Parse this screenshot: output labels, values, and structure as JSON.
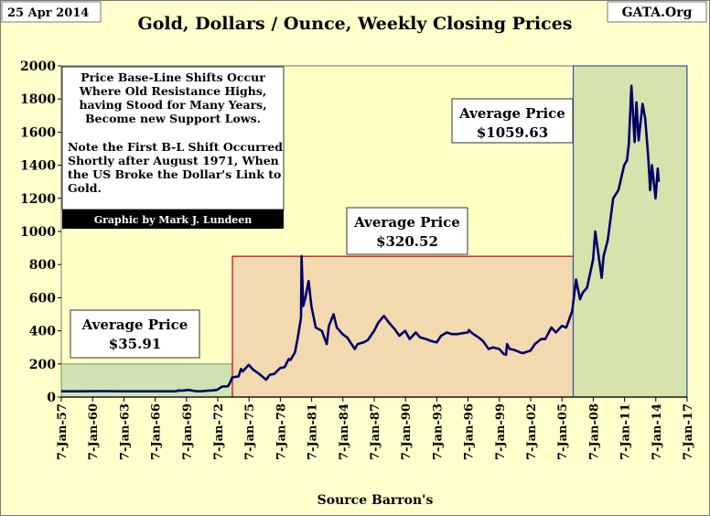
{
  "header": {
    "date": "25 Apr 2014",
    "source_org": "GATA.Org"
  },
  "chart_data": {
    "type": "line",
    "title": "Gold, Dollars / Ounce, Weekly Closing Prices",
    "xlabel": "Source Barron's",
    "ylabel": "",
    "ylim": [
      0,
      2000
    ],
    "yticks": [
      0,
      200,
      400,
      600,
      800,
      1000,
      1200,
      1400,
      1600,
      1800,
      2000
    ],
    "xlim": [
      "1957-01-07",
      "2017-01-07"
    ],
    "xticks": [
      "7-Jan-57",
      "7-Jan-60",
      "7-Jan-63",
      "7-Jan-66",
      "7-Jan-69",
      "7-Jan-72",
      "7-Jan-75",
      "7-Jan-78",
      "7-Jan-81",
      "7-Jan-84",
      "7-Jan-87",
      "7-Jan-90",
      "7-Jan-93",
      "7-Jan-96",
      "7-Jan-99",
      "7-Jan-02",
      "7-Jan-05",
      "7-Jan-08",
      "7-Jan-11",
      "7-Jan-14",
      "7-Jan-17"
    ],
    "grid": false,
    "series": [
      {
        "color": "#000066",
        "x": [
          "1957-01-07",
          "1959-01-05",
          "1961-01-02",
          "1963-01-07",
          "1965-01-04",
          "1967-01-02",
          "1968-01-01",
          "1968-04-01",
          "1968-09-02",
          "1969-03-03",
          "1969-06-02",
          "1970-01-05",
          "1970-06-01",
          "1971-01-04",
          "1971-06-07",
          "1971-12-06",
          "1972-06-05",
          "1973-01-01",
          "1973-03-05",
          "1973-06-04",
          "1973-07-02",
          "1974-01-07",
          "1974-04-01",
          "1974-06-03",
          "1974-12-30",
          "1975-06-02",
          "1975-12-29",
          "1976-08-30",
          "1977-01-03",
          "1977-06-06",
          "1978-01-02",
          "1978-06-05",
          "1978-10-30",
          "1979-01-01",
          "1979-06-04",
          "1979-09-03",
          "1979-12-31",
          "1980-01-21",
          "1980-03-17",
          "1980-06-02",
          "1980-09-22",
          "1980-12-29",
          "1981-06-01",
          "1981-12-28",
          "1982-06-21",
          "1982-09-06",
          "1983-02-14",
          "1983-06-06",
          "1983-12-26",
          "1984-06-04",
          "1985-02-25",
          "1985-06-03",
          "1985-12-30",
          "1986-06-02",
          "1987-01-05",
          "1987-06-01",
          "1987-12-14",
          "1988-06-06",
          "1988-12-26",
          "1989-06-05",
          "1989-12-25",
          "1990-06-04",
          "1990-12-31",
          "1991-06-03",
          "1991-12-30",
          "1992-06-01",
          "1993-01-04",
          "1993-06-07",
          "1993-12-27",
          "1994-06-06",
          "1994-12-26",
          "1995-06-05",
          "1996-01-01",
          "1996-02-05",
          "1996-06-03",
          "1997-01-06",
          "1997-06-02",
          "1997-12-29",
          "1998-06-01",
          "1999-01-04",
          "1999-06-07",
          "1999-08-30",
          "1999-10-04",
          "2000-01-03",
          "2000-06-05",
          "2001-01-01",
          "2001-04-02",
          "2001-12-31",
          "2002-06-03",
          "2003-01-06",
          "2003-06-02",
          "2004-01-05",
          "2004-06-07",
          "2005-01-03",
          "2005-06-06",
          "2006-01-02",
          "2006-05-15",
          "2006-10-02",
          "2007-01-01",
          "2007-06-04",
          "2007-12-31",
          "2008-03-17",
          "2008-10-27",
          "2009-01-05",
          "2009-06-01",
          "2009-12-07",
          "2010-06-07",
          "2010-12-27",
          "2011-04-04",
          "2011-06-06",
          "2011-09-05",
          "2011-12-26",
          "2012-02-27",
          "2012-05-14",
          "2012-10-01",
          "2012-12-31",
          "2013-04-15",
          "2013-06-24",
          "2013-08-26",
          "2013-12-30",
          "2014-03-17",
          "2014-04-21"
        ],
        "values": [
          35,
          35,
          36,
          35,
          35,
          35,
          35,
          40,
          39,
          43,
          41,
          35,
          35,
          38,
          40,
          43,
          63,
          65,
          85,
          120,
          120,
          125,
          170,
          155,
          195,
          165,
          140,
          105,
          135,
          140,
          175,
          180,
          230,
          225,
          270,
          350,
          480,
          850,
          550,
          600,
          700,
          550,
          420,
          400,
          320,
          430,
          500,
          420,
          380,
          360,
          290,
          320,
          330,
          345,
          400,
          450,
          490,
          450,
          410,
          370,
          400,
          350,
          390,
          360,
          350,
          340,
          330,
          370,
          390,
          380,
          380,
          385,
          390,
          405,
          385,
          360,
          340,
          290,
          300,
          290,
          260,
          255,
          320,
          290,
          285,
          270,
          265,
          280,
          320,
          350,
          350,
          420,
          390,
          430,
          420,
          520,
          710,
          590,
          630,
          660,
          830,
          1000,
          720,
          850,
          950,
          1200,
          1250,
          1400,
          1430,
          1530,
          1880,
          1540,
          1780,
          1550,
          1770,
          1680,
          1450,
          1250,
          1400,
          1200,
          1380,
          1300
        ]
      }
    ],
    "regions": [
      {
        "start": "1957-01-07",
        "end": "1973-06-04",
        "label_line1": "Average Price",
        "label_line2": "$35.91",
        "top": 200,
        "color": "#cfe3b2",
        "edge": "#88a870"
      },
      {
        "start": "1973-06-04",
        "end": "2006-02-06",
        "label_line1": "Average Price",
        "label_line2": "$320.52",
        "top": 850,
        "color": "#f2d9b0",
        "edge": "#cc0000"
      },
      {
        "start": "2006-02-06",
        "end": "2016-12-31",
        "label_line1": "Average Price",
        "label_line2": "$1059.63",
        "top": 2000,
        "color": "#d6e3ad",
        "edge": "#3355aa"
      }
    ],
    "annotations": {
      "note_lines": [
        "Price Base-Line Shifts Occur",
        "Where Old Resistance Highs,",
        "having Stood for Many Years,",
        "Become new Support Lows.",
        "Note the First B-L Shift Occurred",
        "Shortly after August 1971, When",
        "the US Broke the Dollar's Link to",
        "Gold."
      ],
      "credit": "Graphic by Mark J. Lundeen"
    }
  }
}
